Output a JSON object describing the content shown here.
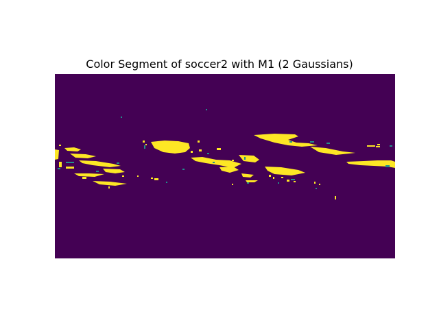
{
  "chart_data": {
    "type": "heatmap",
    "title": "Color Segment of soccer2 with M1 (2 Gaussians)",
    "xlabel": "",
    "ylabel": "",
    "axes_visible": false,
    "grid": false,
    "colormap": "viridis",
    "classes": [
      {
        "label": "",
        "value": 0,
        "color": "#440154"
      },
      {
        "label": "",
        "value": 0.5,
        "color": "#21918c"
      },
      {
        "label": "",
        "value": 1,
        "color": "#fde725"
      }
    ],
    "image_size": {
      "width": 496,
      "height": 269
    },
    "foreground_regions": [
      {
        "name": "left-cluster",
        "x": [
          0,
          110
        ],
        "y": [
          105,
          170
        ]
      },
      {
        "name": "center-left-streak",
        "x": [
          135,
          200
        ],
        "y": [
          95,
          120
        ]
      },
      {
        "name": "center-streak",
        "x": [
          195,
          300
        ],
        "y": [
          118,
          160
        ]
      },
      {
        "name": "center-right-streak",
        "x": [
          305,
          365
        ],
        "y": [
          133,
          165
        ]
      },
      {
        "name": "upper-right-streak",
        "x": [
          290,
          385
        ],
        "y": [
          86,
          110
        ]
      },
      {
        "name": "right-streak",
        "x": [
          370,
          496
        ],
        "y": [
          104,
          140
        ]
      },
      {
        "name": "scattered-points",
        "x": [
          95,
          412
        ],
        "y": [
          50,
          185
        ]
      }
    ]
  }
}
